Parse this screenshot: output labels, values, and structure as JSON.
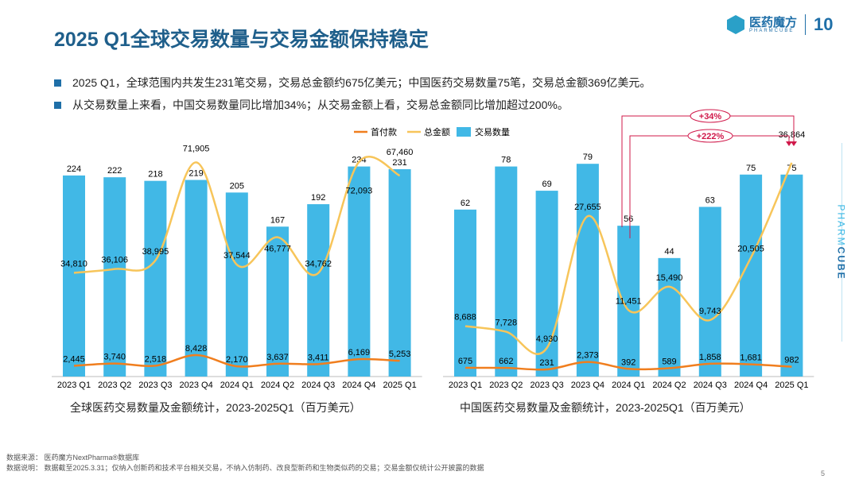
{
  "title": "2025 Q1全球交易数量与交易金额保持稳定",
  "logo": {
    "name": "医药魔方",
    "sub": "PHARMCUBE",
    "ten": "10"
  },
  "bullets": [
    "2025 Q1，全球范围内共发生231笔交易，交易总金额约675亿美元；中国医药交易数量75笔，交易总金额369亿美元。",
    "从交易数量上来看，中国交易数量同比增加34%；从交易金额上看，交易总金额同比增加超过200%。"
  ],
  "side_brand": {
    "light": "PHARM",
    "bold": "CUBE"
  },
  "colors": {
    "bar": "#41b8e6",
    "total": "#f7c55a",
    "upfront": "#f07e1e",
    "annotation": "#d0184a"
  },
  "chart_data": [
    {
      "type": "bar+line",
      "caption": "全球医药交易数量及金额统计，2023-2025Q1（百万美元）",
      "legend": {
        "placement": "top",
        "items": [
          "首付款",
          "总金额",
          "交易数量"
        ]
      },
      "categories": [
        "2023 Q1",
        "2023 Q2",
        "2023 Q3",
        "2023 Q4",
        "2024 Q1",
        "2024 Q2",
        "2024 Q3",
        "2024 Q4",
        "2025 Q1"
      ],
      "series": [
        {
          "name": "交易数量",
          "type": "bar",
          "values": [
            224,
            222,
            218,
            219,
            205,
            167,
            192,
            234,
            231
          ]
        },
        {
          "name": "总金额",
          "type": "line",
          "values": [
            34810,
            36106,
            38995,
            71905,
            37544,
            46777,
            34762,
            72093,
            67460
          ]
        },
        {
          "name": "首付款",
          "type": "line",
          "values": [
            2445,
            3740,
            2518,
            8428,
            2170,
            3637,
            3411,
            6169,
            5253
          ]
        }
      ]
    },
    {
      "type": "bar+line",
      "caption": "中国医药交易数量及金额统计，2023-2025Q1（百万美元）",
      "categories": [
        "2023 Q1",
        "2023 Q2",
        "2023 Q3",
        "2023 Q4",
        "2024 Q1",
        "2024 Q2",
        "2024 Q3",
        "2024 Q4",
        "2025 Q1"
      ],
      "series": [
        {
          "name": "交易数量",
          "type": "bar",
          "values": [
            62,
            78,
            69,
            79,
            56,
            44,
            63,
            75,
            75
          ]
        },
        {
          "name": "总金额",
          "type": "line",
          "values": [
            8688,
            7728,
            4930,
            27655,
            11451,
            15490,
            9743,
            20505,
            36864
          ]
        },
        {
          "name": "首付款",
          "type": "line",
          "values": [
            675,
            662,
            231,
            2373,
            392,
            589,
            1858,
            1681,
            982
          ]
        }
      ],
      "annotations": [
        "+34%",
        "+222%"
      ]
    }
  ],
  "footer": {
    "source": "数据来源：  医药魔方NextPharma®数据库",
    "note": "数据说明：  数据截至2025.3.31；仅纳入创新药和技术平台相关交易，不纳入仿制药、改良型新药和生物类似药的交易；交易金额仅统计公开披露的数据"
  },
  "page_number": "5"
}
